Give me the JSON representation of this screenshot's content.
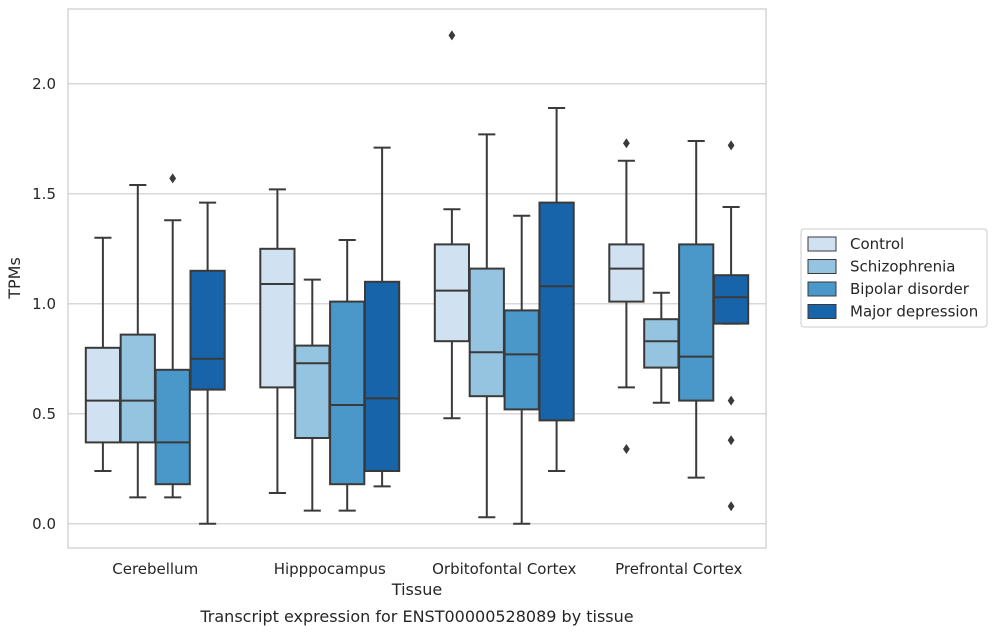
{
  "chart_data": {
    "type": "boxplot",
    "xlabel": "Tissue",
    "ylabel": "TPMs",
    "caption": "Transcript expression for ENST00000528089 by tissue",
    "ylim": [
      -0.11,
      2.34
    ],
    "yticks": [
      0.0,
      0.5,
      1.0,
      1.5,
      2.0
    ],
    "ytick_labels": [
      "0.0",
      "0.5",
      "1.0",
      "1.5",
      "2.0"
    ],
    "grid": "horizontal",
    "legend_position": "right",
    "categories": [
      "Cerebellum",
      "Hipppocampus",
      "Orbitofontal Cortex",
      "Prefrontal Cortex"
    ],
    "series": [
      {
        "name": "Control",
        "color": "#d0e1f2",
        "boxes": [
          {
            "whisker_low": 0.24,
            "q1": 0.37,
            "median": 0.56,
            "q3": 0.8,
            "whisker_high": 1.3,
            "outliers": []
          },
          {
            "whisker_low": 0.14,
            "q1": 0.62,
            "median": 1.09,
            "q3": 1.25,
            "whisker_high": 1.52,
            "outliers": []
          },
          {
            "whisker_low": 0.48,
            "q1": 0.83,
            "median": 1.06,
            "q3": 1.27,
            "whisker_high": 1.43,
            "outliers": [
              2.22
            ]
          },
          {
            "whisker_low": 0.62,
            "q1": 1.01,
            "median": 1.16,
            "q3": 1.27,
            "whisker_high": 1.65,
            "outliers": [
              1.73,
              0.34
            ]
          }
        ]
      },
      {
        "name": "Schizophrenia",
        "color": "#94c4df",
        "boxes": [
          {
            "whisker_low": 0.12,
            "q1": 0.37,
            "median": 0.56,
            "q3": 0.86,
            "whisker_high": 1.54,
            "outliers": []
          },
          {
            "whisker_low": 0.06,
            "q1": 0.39,
            "median": 0.73,
            "q3": 0.81,
            "whisker_high": 1.11,
            "outliers": []
          },
          {
            "whisker_low": 0.03,
            "q1": 0.58,
            "median": 0.78,
            "q3": 1.16,
            "whisker_high": 1.77,
            "outliers": []
          },
          {
            "whisker_low": 0.55,
            "q1": 0.71,
            "median": 0.83,
            "q3": 0.93,
            "whisker_high": 1.05,
            "outliers": []
          }
        ]
      },
      {
        "name": "Bipolar disorder",
        "color": "#4a98c9",
        "boxes": [
          {
            "whisker_low": 0.12,
            "q1": 0.18,
            "median": 0.37,
            "q3": 0.7,
            "whisker_high": 1.38,
            "outliers": [
              1.57
            ]
          },
          {
            "whisker_low": 0.06,
            "q1": 0.18,
            "median": 0.54,
            "q3": 1.01,
            "whisker_high": 1.29,
            "outliers": []
          },
          {
            "whisker_low": 0.0,
            "q1": 0.52,
            "median": 0.77,
            "q3": 0.97,
            "whisker_high": 1.4,
            "outliers": []
          },
          {
            "whisker_low": 0.21,
            "q1": 0.56,
            "median": 0.76,
            "q3": 1.27,
            "whisker_high": 1.74,
            "outliers": []
          }
        ]
      },
      {
        "name": "Major depression",
        "color": "#1764ab",
        "boxes": [
          {
            "whisker_low": 0.0,
            "q1": 0.61,
            "median": 0.75,
            "q3": 1.15,
            "whisker_high": 1.46,
            "outliers": []
          },
          {
            "whisker_low": 0.17,
            "q1": 0.24,
            "median": 0.57,
            "q3": 1.1,
            "whisker_high": 1.71,
            "outliers": []
          },
          {
            "whisker_low": 0.24,
            "q1": 0.47,
            "median": 1.08,
            "q3": 1.46,
            "whisker_high": 1.89,
            "outliers": []
          },
          {
            "whisker_low": 0.91,
            "q1": 0.91,
            "median": 1.03,
            "q3": 1.13,
            "whisker_high": 1.44,
            "outliers": [
              1.72,
              0.56,
              0.38,
              0.08
            ]
          }
        ]
      }
    ]
  }
}
